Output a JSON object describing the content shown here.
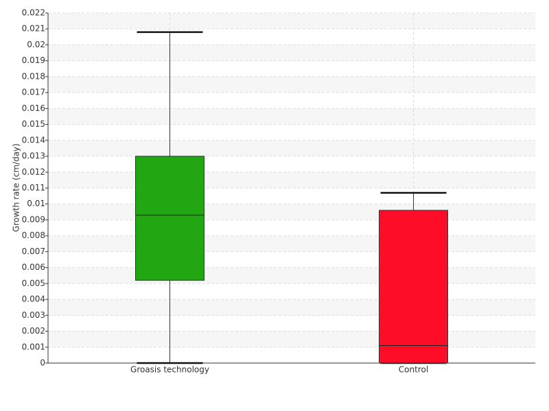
{
  "chart_data": {
    "type": "box",
    "y_label": "Growth rate (cm/day)",
    "categories": [
      "Groasis technology",
      "Control"
    ],
    "boxes": [
      {
        "min": 0,
        "q1": 0.0052,
        "median": 0.0093,
        "q3": 0.013,
        "max": 0.0208,
        "color": "#22a612"
      },
      {
        "min": 0,
        "q1": 0,
        "median": 0.0011,
        "q3": 0.0096,
        "max": 0.0107,
        "color": "#ff0c28"
      }
    ],
    "ylim": [
      0,
      0.022
    ],
    "yticks": [
      0,
      0.001,
      0.002,
      0.003,
      0.004,
      0.005,
      0.006,
      0.007,
      0.008,
      0.009,
      0.01,
      0.011,
      0.012,
      0.013,
      0.014,
      0.015,
      0.016,
      0.017,
      0.018,
      0.019,
      0.02,
      0.021,
      0.022
    ],
    "grid": true
  }
}
